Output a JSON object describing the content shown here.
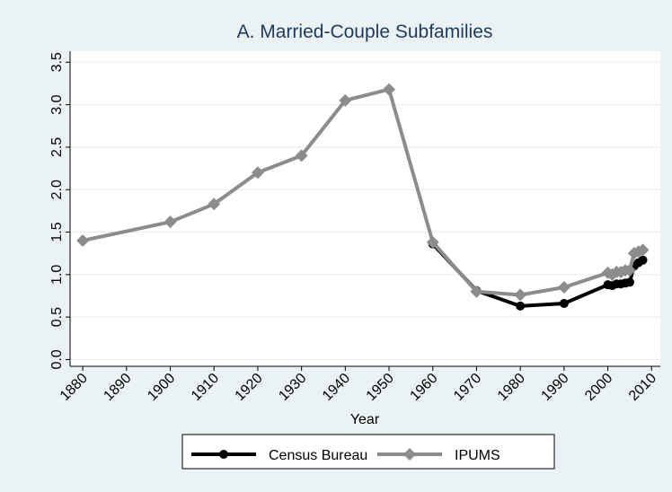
{
  "chart_data": {
    "type": "line",
    "title": "A. Married-Couple Subfamilies",
    "x_label": "Year",
    "x": [
      1880,
      1900,
      1910,
      1920,
      1930,
      1940,
      1950,
      1960,
      1970,
      1980,
      1990,
      2000,
      2001,
      2002,
      2003,
      2004,
      2005,
      2006,
      2007,
      2008
    ],
    "series": [
      {
        "name": "Census Bureau",
        "color": "#000000",
        "marker": "circle",
        "values": [
          null,
          null,
          null,
          null,
          null,
          null,
          null,
          1.36,
          0.81,
          0.63,
          0.66,
          0.88,
          0.87,
          0.89,
          0.89,
          0.9,
          0.91,
          1.1,
          1.14,
          1.17
        ]
      },
      {
        "name": "IPUMS",
        "color": "#8c8c8c",
        "marker": "diamond",
        "values": [
          1.4,
          1.62,
          1.83,
          2.2,
          2.4,
          3.05,
          3.18,
          1.38,
          0.8,
          0.76,
          0.85,
          1.02,
          1.0,
          1.03,
          1.03,
          1.05,
          1.05,
          1.25,
          1.27,
          1.29
        ]
      }
    ],
    "xlim": [
      1877.1,
      2012
    ],
    "xticks": [
      1880,
      1890,
      1900,
      1910,
      1920,
      1930,
      1940,
      1950,
      1960,
      1970,
      1980,
      1990,
      2000,
      2010
    ],
    "ylim": [
      -0.08,
      3.63
    ],
    "yticks": [
      {
        "value": 0,
        "label": "0.0"
      },
      0.5,
      {
        "value": 1,
        "label": "1.0"
      },
      1.5,
      {
        "value": 2,
        "label": "2.0"
      },
      2.5,
      {
        "value": 3,
        "label": "3.0"
      },
      3.5
    ],
    "grid": true,
    "legend": "bottom"
  }
}
